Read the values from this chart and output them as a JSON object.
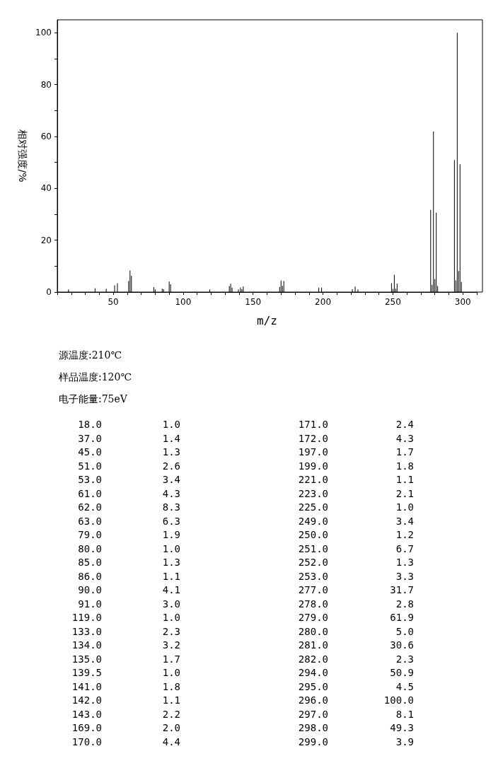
{
  "chart_data": [
    {
      "type": "bar",
      "xlabel": "m/z",
      "ylabel": "相对强度/%",
      "x": [
        18,
        37,
        45,
        51,
        53,
        61,
        62,
        63,
        79,
        80,
        85,
        86,
        90,
        91,
        119,
        133,
        134,
        135,
        139.5,
        141,
        142,
        143,
        169,
        170,
        171,
        172,
        197,
        199,
        221,
        223,
        225,
        249,
        250,
        251,
        252,
        253,
        277,
        278,
        279,
        280,
        281,
        282,
        294,
        295,
        296,
        297,
        298,
        299
      ],
      "values": [
        1.0,
        1.4,
        1.3,
        2.6,
        3.4,
        4.3,
        8.3,
        6.3,
        1.9,
        1.0,
        1.3,
        1.1,
        4.1,
        3.0,
        1.0,
        2.3,
        3.2,
        1.7,
        1.0,
        1.8,
        1.1,
        2.2,
        2.0,
        4.4,
        2.4,
        4.3,
        1.7,
        1.8,
        1.1,
        2.1,
        1.0,
        3.4,
        1.2,
        6.7,
        1.3,
        3.3,
        31.7,
        2.8,
        61.9,
        5.0,
        30.6,
        2.3,
        50.9,
        4.5,
        100.0,
        8.1,
        49.3,
        3.9
      ],
      "color": "#000000",
      "xlim": [
        10,
        310
      ],
      "xticks": [
        50,
        100,
        150,
        200,
        250,
        300
      ],
      "ylim": [
        0,
        105
      ],
      "yticks": [
        0,
        20,
        40,
        60,
        80,
        100
      ],
      "grid": false,
      "annotations": [
        "源温度:210℃",
        "样品温度:120℃",
        "电子能量:75eV"
      ]
    },
    {
      "type": "other",
      "annotations": [
        "18.0",
        "1.0",
        "37.0",
        "1.4",
        "45.0",
        "1.3",
        "51.0",
        "2.6",
        "53.0",
        "3.4",
        "61.0",
        "4.3",
        "62.0",
        "8.3",
        "63.0",
        "6.3",
        "79.0",
        "1.9",
        "80.0",
        "1.0",
        "85.0",
        "1.3",
        "86.0",
        "1.1",
        "90.0",
        "4.1",
        "91.0",
        "3.0",
        "119.0",
        "1.0",
        "133.0",
        "2.3",
        "134.0",
        "3.2",
        "135.0",
        "1.7",
        "139.5",
        "1.0",
        "141.0",
        "1.8",
        "142.0",
        "1.1",
        "143.0",
        "2.2",
        "169.0",
        "2.0",
        "170.0",
        "4.4",
        "171.0",
        "2.4",
        "172.0",
        "4.3",
        "197.0",
        "1.7",
        "199.0",
        "1.8",
        "221.0",
        "1.1",
        "223.0",
        "2.1",
        "225.0",
        "1.0",
        "249.0",
        "3.4",
        "250.0",
        "1.2",
        "251.0",
        "6.7",
        "252.0",
        "1.3",
        "253.0",
        "3.3",
        "277.0",
        "31.7",
        "278.0",
        "2.8",
        "279.0",
        "61.9",
        "280.0",
        "5.0",
        "281.0",
        "30.6",
        "282.0",
        "2.3",
        "294.0",
        "50.9",
        "295.0",
        "4.5",
        "296.0",
        "100.0",
        "297.0",
        "8.1",
        "298.0",
        "49.3",
        "299.0",
        "3.9"
      ]
    }
  ]
}
